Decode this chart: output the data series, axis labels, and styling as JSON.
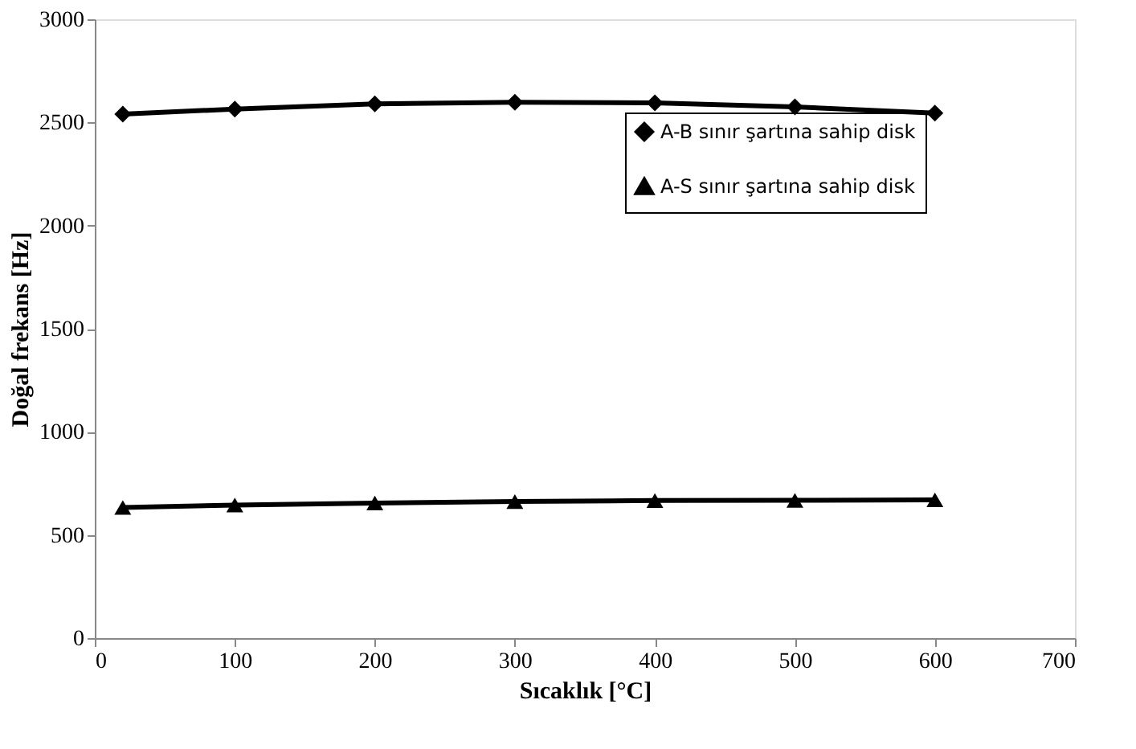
{
  "chart_data": {
    "type": "line",
    "xlabel": "Sıcaklık  [°C]",
    "ylabel": "Doğal frekans  [Hz]",
    "x": [
      20,
      100,
      200,
      300,
      400,
      500,
      600
    ],
    "series": [
      {
        "name": "A-B sınır şartına sahip disk",
        "color": "#000000",
        "marker": "diamond",
        "values": [
          2540,
          2565,
          2590,
          2598,
          2595,
          2575,
          2545
        ]
      },
      {
        "name": "A-S sınır şartına sahip disk",
        "color": "#000000",
        "marker": "triangle",
        "values": [
          633,
          645,
          655,
          662,
          667,
          668,
          670
        ]
      }
    ],
    "xlim": [
      0,
      700
    ],
    "xticks": [
      0,
      100,
      200,
      300,
      400,
      500,
      600,
      700
    ],
    "ylim": [
      0,
      3000
    ],
    "yticks": [
      0,
      500,
      1000,
      1500,
      2000,
      2500,
      3000
    ],
    "grid": false,
    "legend": "top right",
    "line_style": "solid"
  }
}
